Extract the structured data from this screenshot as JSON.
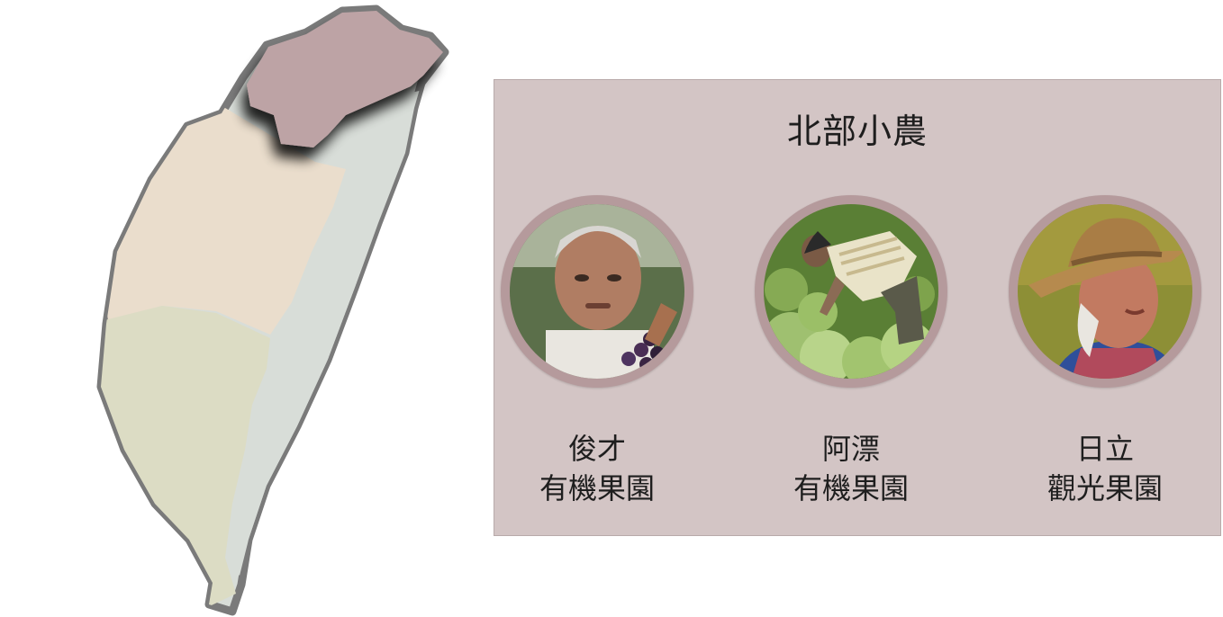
{
  "panel": {
    "title": "北部小農",
    "farmers": [
      {
        "name": "俊才",
        "farm": "有機果園",
        "photo": "portrait-older-man-holding-grapes"
      },
      {
        "name": "阿漂",
        "farm": "有機果園",
        "photo": "farmer-harvesting-lettuce"
      },
      {
        "name": "日立",
        "farm": "觀光果園",
        "photo": "elderly-man-with-straw-hat"
      }
    ]
  },
  "map": {
    "regions": [
      {
        "id": "north",
        "color": "#bda3a5",
        "selected": true
      },
      {
        "id": "central",
        "color": "#eaddcc"
      },
      {
        "id": "south",
        "color": "#dcdcc4"
      },
      {
        "id": "east",
        "color": "#d8ddd8"
      }
    ],
    "border_color": "#7a7a7a"
  }
}
